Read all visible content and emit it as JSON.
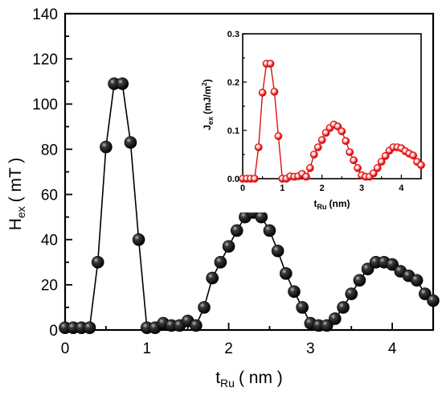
{
  "chart_data": [
    {
      "type": "line",
      "xlabel": "t",
      "xlabel_sub": "Ru",
      "xlabel_unit": "( nm )",
      "ylabel": "H",
      "ylabel_sub": "ex",
      "ylabel_unit": "( mT )",
      "xlim": [
        0,
        4.5
      ],
      "ylim": [
        0,
        140
      ],
      "xticks": [
        0,
        1,
        2,
        3,
        4
      ],
      "yticks": [
        0,
        20,
        40,
        60,
        80,
        100,
        120,
        140
      ],
      "xtick_labels": [
        "0",
        "1",
        "2",
        "3",
        "4"
      ],
      "ytick_labels": [
        "0",
        "20",
        "40",
        "60",
        "80",
        "100",
        "120",
        "140"
      ],
      "grid": false,
      "series": [
        {
          "color": "#000000",
          "marker": "sphere",
          "x": [
            0.0,
            0.1,
            0.2,
            0.3,
            0.4,
            0.5,
            0.6,
            0.7,
            0.8,
            0.9,
            1.0,
            1.1,
            1.2,
            1.3,
            1.4,
            1.5,
            1.6,
            1.7,
            1.8,
            1.9,
            2.0,
            2.1,
            2.2,
            2.3,
            2.4,
            2.5,
            2.6,
            2.7,
            2.8,
            2.9,
            3.0,
            3.1,
            3.2,
            3.3,
            3.4,
            3.5,
            3.6,
            3.7,
            3.8,
            3.9,
            4.0,
            4.1,
            4.2,
            4.3,
            4.4,
            4.5
          ],
          "y": [
            1,
            1,
            1,
            1,
            30,
            81,
            109,
            109,
            83,
            40,
            1,
            1,
            3,
            2,
            2,
            4,
            2,
            10,
            23,
            30,
            37,
            44,
            50,
            52,
            50,
            44,
            35,
            25,
            17,
            10,
            3,
            2,
            2,
            5,
            10,
            16,
            22,
            27,
            30,
            30,
            29,
            26,
            24,
            22,
            16,
            13
          ]
        }
      ]
    },
    {
      "type": "line",
      "inset": true,
      "xlabel": "t",
      "xlabel_sub": "Ru",
      "xlabel_unit": "(nm)",
      "ylabel": "J",
      "ylabel_sub": "ex",
      "ylabel_unit": "(mJ/m",
      "ylabel_sup": "2",
      "ylabel_close": ")",
      "xlim": [
        0,
        4.5
      ],
      "ylim": [
        0,
        0.3
      ],
      "xticks": [
        0,
        1,
        2,
        3,
        4
      ],
      "yticks": [
        0.0,
        0.1,
        0.2,
        0.3
      ],
      "xtick_labels": [
        "0",
        "1",
        "2",
        "3",
        "4"
      ],
      "ytick_labels": [
        "0.0",
        "0.1",
        "0.2",
        "0.3"
      ],
      "grid": false,
      "series": [
        {
          "color": "#dd1111",
          "marker": "ring",
          "x": [
            0.0,
            0.1,
            0.2,
            0.3,
            0.4,
            0.5,
            0.6,
            0.7,
            0.8,
            0.9,
            1.0,
            1.1,
            1.2,
            1.3,
            1.4,
            1.5,
            1.6,
            1.7,
            1.8,
            1.9,
            2.0,
            2.1,
            2.2,
            2.3,
            2.4,
            2.5,
            2.6,
            2.7,
            2.8,
            2.9,
            3.0,
            3.1,
            3.2,
            3.3,
            3.4,
            3.5,
            3.6,
            3.7,
            3.8,
            3.9,
            4.0,
            4.1,
            4.2,
            4.3,
            4.4,
            4.5
          ],
          "y": [
            0.0,
            0.0,
            0.0,
            0.0,
            0.065,
            0.178,
            0.238,
            0.238,
            0.18,
            0.088,
            0.0,
            0.0,
            0.005,
            0.004,
            0.005,
            0.01,
            0.004,
            0.022,
            0.05,
            0.065,
            0.08,
            0.095,
            0.105,
            0.112,
            0.108,
            0.098,
            0.078,
            0.055,
            0.038,
            0.022,
            0.007,
            0.004,
            0.004,
            0.011,
            0.022,
            0.035,
            0.047,
            0.058,
            0.065,
            0.065,
            0.063,
            0.057,
            0.052,
            0.048,
            0.035,
            0.028
          ]
        }
      ]
    }
  ]
}
